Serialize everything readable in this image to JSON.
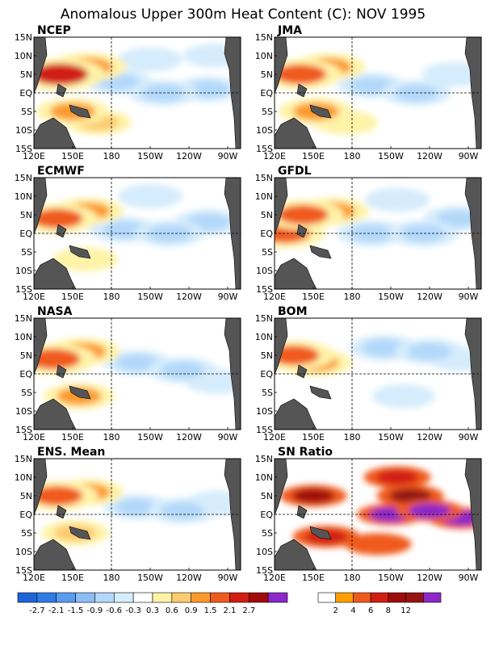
{
  "title": "Anomalous Upper 300m Heat Content (C): NOV 1995",
  "chart_data": [
    {
      "type": "heatmap",
      "panel": "NCEP",
      "title": "NCEP",
      "x_ticks": [
        "120E",
        "150E",
        "180",
        "150W",
        "120W",
        "90W"
      ],
      "y_ticks": [
        "15N",
        "10N",
        "5N",
        "EQ",
        "5S",
        "10S",
        "15S"
      ],
      "xlim": [
        120,
        280
      ],
      "ylim": [
        -15,
        15
      ],
      "units": "C",
      "features": [
        {
          "lon": 140,
          "lat": 5,
          "value": 2.2
        },
        {
          "lon": 162,
          "lat": 7,
          "value": 1.3
        },
        {
          "lon": 150,
          "lat": -5,
          "value": 1.0
        },
        {
          "lon": 170,
          "lat": -8,
          "value": 0.6
        },
        {
          "lon": 185,
          "lat": 3,
          "value": -0.7
        },
        {
          "lon": 220,
          "lat": 0,
          "value": -0.8
        },
        {
          "lon": 255,
          "lat": 1,
          "value": -0.7
        },
        {
          "lon": 210,
          "lat": 9,
          "value": -0.5
        },
        {
          "lon": 260,
          "lat": 10,
          "value": -0.4
        }
      ]
    },
    {
      "type": "heatmap",
      "panel": "JMA",
      "title": "JMA",
      "x_ticks": [
        "120E",
        "150E",
        "180",
        "150W",
        "120W",
        "90W"
      ],
      "y_ticks": [
        "15N",
        "10N",
        "5N",
        "EQ",
        "5S",
        "10S",
        "15S"
      ],
      "xlim": [
        120,
        280
      ],
      "ylim": [
        -15,
        15
      ],
      "units": "C",
      "features": [
        {
          "lon": 140,
          "lat": 5,
          "value": 1.7
        },
        {
          "lon": 162,
          "lat": 7,
          "value": 1.0
        },
        {
          "lon": 152,
          "lat": -5,
          "value": 1.1
        },
        {
          "lon": 175,
          "lat": -8,
          "value": 0.5
        },
        {
          "lon": 195,
          "lat": 2,
          "value": -0.7
        },
        {
          "lon": 230,
          "lat": 0,
          "value": -0.8
        },
        {
          "lon": 260,
          "lat": 5,
          "value": -0.6
        }
      ]
    },
    {
      "type": "heatmap",
      "panel": "ECMWF",
      "title": "ECMWF",
      "x_ticks": [
        "120E",
        "150E",
        "180",
        "150W",
        "120W",
        "90W"
      ],
      "y_ticks": [
        "15N",
        "10N",
        "5N",
        "EQ",
        "5S",
        "10S",
        "15S"
      ],
      "xlim": [
        120,
        280
      ],
      "ylim": [
        -15,
        15
      ],
      "units": "C",
      "features": [
        {
          "lon": 138,
          "lat": 4,
          "value": 1.6
        },
        {
          "lon": 162,
          "lat": 6,
          "value": 0.9
        },
        {
          "lon": 190,
          "lat": 1,
          "value": -0.8
        },
        {
          "lon": 225,
          "lat": 0,
          "value": -0.9
        },
        {
          "lon": 255,
          "lat": 3,
          "value": -0.8
        },
        {
          "lon": 210,
          "lat": 10,
          "value": -0.5
        },
        {
          "lon": 160,
          "lat": -7,
          "value": 0.5
        }
      ]
    },
    {
      "type": "heatmap",
      "panel": "GFDL",
      "title": "GFDL",
      "x_ticks": [
        "120E",
        "150E",
        "180",
        "150W",
        "120W",
        "90W"
      ],
      "y_ticks": [
        "15N",
        "10N",
        "5N",
        "EQ",
        "5S",
        "10S",
        "15S"
      ],
      "xlim": [
        120,
        280
      ],
      "ylim": [
        -15,
        15
      ],
      "units": "C",
      "features": [
        {
          "lon": 142,
          "lat": 5,
          "value": 1.6
        },
        {
          "lon": 165,
          "lat": 6,
          "value": 1.0
        },
        {
          "lon": 128,
          "lat": 0,
          "value": 1.5
        },
        {
          "lon": 195,
          "lat": 0,
          "value": -0.8
        },
        {
          "lon": 235,
          "lat": 0,
          "value": -0.9
        },
        {
          "lon": 262,
          "lat": 4,
          "value": -0.7
        },
        {
          "lon": 215,
          "lat": 9,
          "value": -0.5
        }
      ]
    },
    {
      "type": "heatmap",
      "panel": "NASA",
      "title": "NASA",
      "x_ticks": [
        "120E",
        "150E",
        "180",
        "150W",
        "120W",
        "90W"
      ],
      "y_ticks": [
        "15N",
        "10N",
        "5N",
        "EQ",
        "5S",
        "10S",
        "15S"
      ],
      "xlim": [
        120,
        280
      ],
      "ylim": [
        -15,
        15
      ],
      "units": "C",
      "features": [
        {
          "lon": 135,
          "lat": 4,
          "value": 1.9
        },
        {
          "lon": 158,
          "lat": 6,
          "value": 1.1
        },
        {
          "lon": 155,
          "lat": -6,
          "value": 0.9
        },
        {
          "lon": 200,
          "lat": 3,
          "value": -0.7
        },
        {
          "lon": 235,
          "lat": 1,
          "value": -0.8
        },
        {
          "lon": 262,
          "lat": -2,
          "value": -0.6
        }
      ]
    },
    {
      "type": "heatmap",
      "panel": "BOM",
      "title": "BOM",
      "x_ticks": [
        "120E",
        "150E",
        "180",
        "150W",
        "120W",
        "90W"
      ],
      "y_ticks": [
        "15N",
        "10N",
        "5N",
        "EQ",
        "5S",
        "10S",
        "15S"
      ],
      "xlim": [
        120,
        280
      ],
      "ylim": [
        -15,
        15
      ],
      "units": "C",
      "features": [
        {
          "lon": 135,
          "lat": 5,
          "value": 1.6
        },
        {
          "lon": 152,
          "lat": 3,
          "value": 1.0
        },
        {
          "lon": 205,
          "lat": 7,
          "value": -0.8
        },
        {
          "lon": 240,
          "lat": 6,
          "value": -0.8
        },
        {
          "lon": 265,
          "lat": 4,
          "value": -0.6
        },
        {
          "lon": 220,
          "lat": -6,
          "value": -0.4
        }
      ]
    },
    {
      "type": "heatmap",
      "panel": "ENS. Mean",
      "title": "ENS. Mean",
      "x_ticks": [
        "120E",
        "150E",
        "180",
        "150W",
        "120W",
        "90W"
      ],
      "y_ticks": [
        "15N",
        "10N",
        "5N",
        "EQ",
        "5S",
        "10S",
        "15S"
      ],
      "xlim": [
        120,
        280
      ],
      "ylim": [
        -15,
        15
      ],
      "units": "C",
      "features": [
        {
          "lon": 138,
          "lat": 5,
          "value": 1.6
        },
        {
          "lon": 162,
          "lat": 6,
          "value": 0.9
        },
        {
          "lon": 152,
          "lat": -5,
          "value": 0.7
        },
        {
          "lon": 200,
          "lat": 2,
          "value": -0.7
        },
        {
          "lon": 235,
          "lat": 1,
          "value": -0.8
        },
        {
          "lon": 262,
          "lat": 3,
          "value": -0.6
        }
      ]
    },
    {
      "type": "heatmap",
      "panel": "SN Ratio",
      "title": "SN Ratio",
      "x_ticks": [
        "120E",
        "150E",
        "180",
        "150W",
        "120W",
        "90W"
      ],
      "y_ticks": [
        "15N",
        "10N",
        "5N",
        "EQ",
        "5S",
        "10S",
        "15S"
      ],
      "xlim": [
        120,
        280
      ],
      "ylim": [
        -15,
        15
      ],
      "units": "",
      "features": [
        {
          "lon": 210,
          "lat": 0,
          "value": 14
        },
        {
          "lon": 240,
          "lat": 1,
          "value": 14
        },
        {
          "lon": 265,
          "lat": -1,
          "value": 12
        },
        {
          "lon": 225,
          "lat": 5,
          "value": 8
        },
        {
          "lon": 150,
          "lat": 5,
          "value": 6
        },
        {
          "lon": 160,
          "lat": -6,
          "value": 4
        },
        {
          "lon": 215,
          "lat": 10,
          "value": 4
        },
        {
          "lon": 200,
          "lat": -8,
          "value": 3
        }
      ]
    }
  ],
  "colorbar_anomaly": {
    "labels": [
      "-2.7",
      "-2.1",
      "-1.5",
      "-0.9",
      "-0.6",
      "-0.3",
      "0.3",
      "0.6",
      "0.9",
      "1.5",
      "2.1",
      "2.7"
    ],
    "colors": [
      "#1e64d7",
      "#2f7be6",
      "#5a9bef",
      "#8cbdf5",
      "#b2d8fa",
      "#d5ecfc",
      "#ffffff",
      "#fff3a8",
      "#fdcb70",
      "#fb9a2c",
      "#f05a1c",
      "#d21e12",
      "#a00a0a",
      "#8c28c8"
    ]
  },
  "colorbar_sn": {
    "labels": [
      "2",
      "4",
      "6",
      "8",
      "12"
    ],
    "colors": [
      "#ffffff",
      "#ffa000",
      "#f05a1c",
      "#d21e12",
      "#a00a0a",
      "#961414",
      "#8c28c8"
    ]
  }
}
